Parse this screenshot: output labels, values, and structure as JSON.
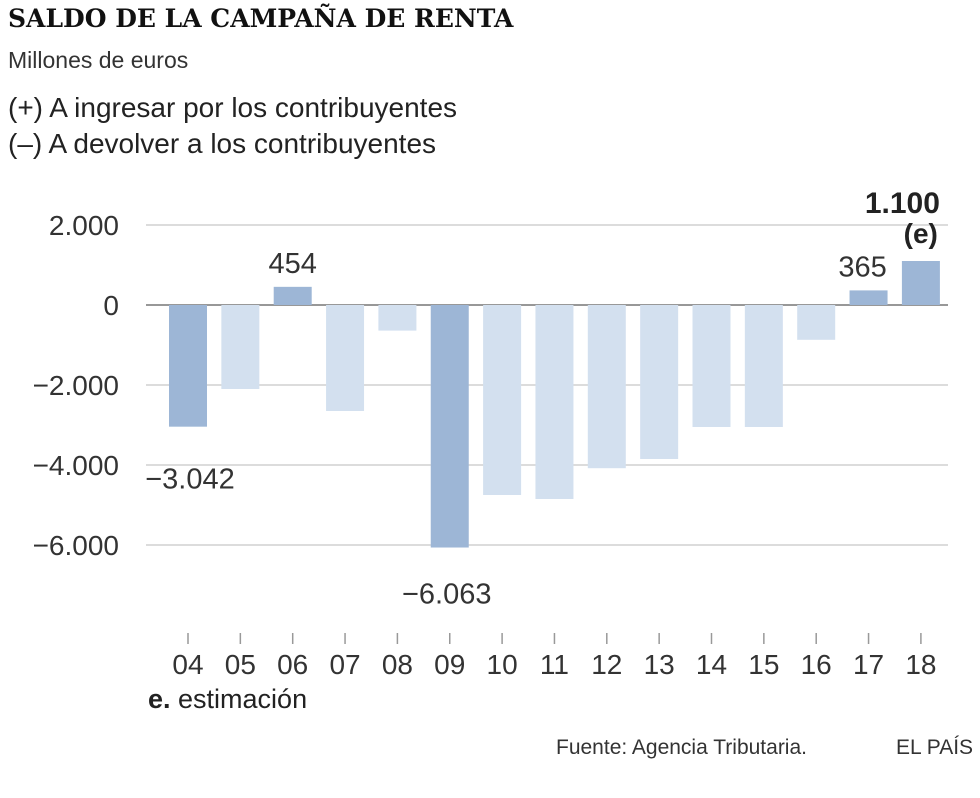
{
  "chart_data": {
    "type": "bar",
    "title": "SALDO DE LA CAMPAÑA DE RENTA",
    "subtitle": "Millones de euros",
    "legend": {
      "positive": "(+) A ingresar por los contribuyentes",
      "negative": "(–) A devolver a los contribuyentes"
    },
    "categories": [
      "04",
      "05",
      "06",
      "07",
      "08",
      "09",
      "10",
      "11",
      "12",
      "13",
      "14",
      "15",
      "16",
      "17",
      "18"
    ],
    "values": [
      -3042,
      -2100,
      454,
      -2650,
      -640,
      -6063,
      -4750,
      -4850,
      -4080,
      -3850,
      -3050,
      -3050,
      -870,
      365,
      1100
    ],
    "highlighted": [
      true,
      false,
      true,
      false,
      false,
      true,
      false,
      false,
      false,
      false,
      false,
      false,
      false,
      true,
      true
    ],
    "data_labels": [
      {
        "index": 0,
        "text": "−3.042"
      },
      {
        "index": 2,
        "text": "454"
      },
      {
        "index": 5,
        "text": "−6.063"
      },
      {
        "index": 13,
        "text": "365"
      },
      {
        "index": 14,
        "text": "1.100",
        "bold": true,
        "suffix": "(e)"
      }
    ],
    "y_ticks": [
      2000,
      0,
      -2000,
      -4000,
      -6000
    ],
    "y_tick_labels": [
      "2.000",
      "0",
      "−2.000",
      "−4.000",
      "−6.000"
    ],
    "ylim": [
      -8000,
      2000
    ],
    "grid": true,
    "colors": {
      "highlight": "#9db6d6",
      "normal": "#d3e0ef",
      "grid": "#c8c8c8",
      "zero": "#777777",
      "text": "#333333"
    }
  },
  "note": {
    "prefix": "e.",
    "text": " estimación"
  },
  "source": "Fuente: Agencia Tributaria.",
  "brand": "EL PAÍS"
}
